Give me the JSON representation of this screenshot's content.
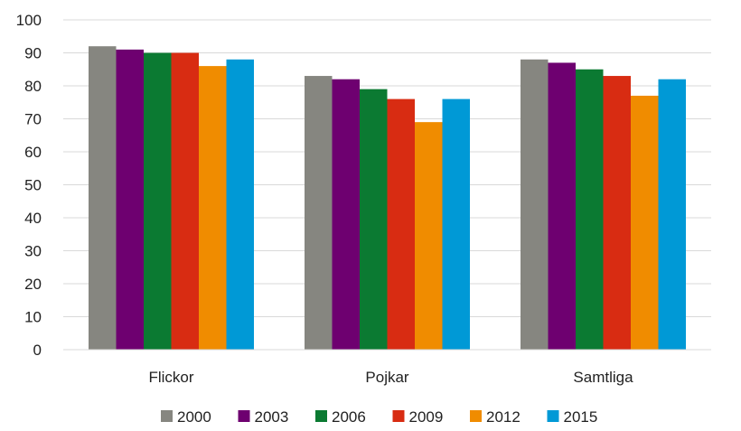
{
  "chart_data": {
    "type": "bar",
    "title": "",
    "xlabel": "",
    "ylabel": "",
    "categories": [
      "Flickor",
      "Pojkar",
      "Samtliga"
    ],
    "ylim": [
      0,
      100
    ],
    "yticks": [
      0,
      10,
      20,
      30,
      40,
      50,
      60,
      70,
      80,
      90,
      100
    ],
    "grid": true,
    "legend_position": "bottom",
    "series": [
      {
        "name": "2000",
        "color": "#868680",
        "values": [
          92,
          83,
          88
        ]
      },
      {
        "name": "2003",
        "color": "#6e0070",
        "values": [
          91,
          82,
          87
        ]
      },
      {
        "name": "2006",
        "color": "#0b7a32",
        "values": [
          90,
          79,
          85
        ]
      },
      {
        "name": "2009",
        "color": "#d82c12",
        "values": [
          90,
          76,
          83
        ]
      },
      {
        "name": "2012",
        "color": "#f08c00",
        "values": [
          86,
          69,
          77
        ]
      },
      {
        "name": "2015",
        "color": "#0099d6",
        "values": [
          88,
          76,
          82
        ]
      }
    ]
  }
}
